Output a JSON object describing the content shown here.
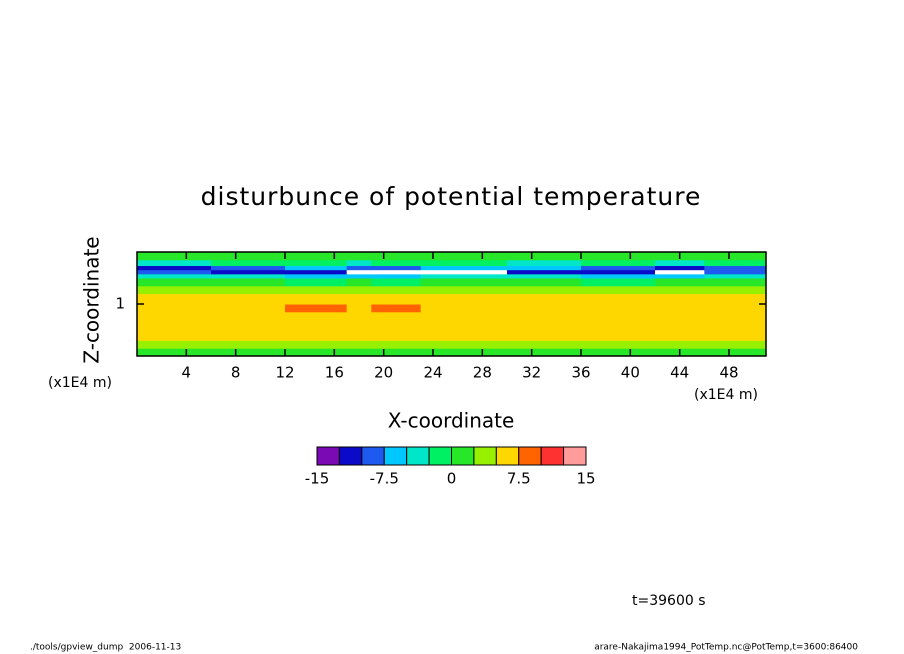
{
  "chart_data": {
    "type": "contour",
    "title": "disturbunce of potential temperature",
    "xlabel": "X-coordinate",
    "ylabel": "Z-coordinate",
    "xunit": "(x1E4 m)",
    "yunit": "(x1E4 m)",
    "xlim": [
      0,
      51
    ],
    "ylim": [
      0,
      2
    ],
    "xticks": [
      4,
      8,
      12,
      16,
      20,
      24,
      28,
      32,
      36,
      40,
      44,
      48
    ],
    "yticks": [
      1
    ],
    "field": {
      "x_edges": [
        0,
        6,
        12,
        17,
        19,
        23,
        30,
        36,
        42,
        46,
        51
      ],
      "z_edges": [
        0,
        0.15,
        0.3,
        0.85,
        1.0,
        1.2,
        1.35,
        1.5,
        1.58,
        1.66,
        1.74,
        1.85,
        2.0
      ],
      "values": [
        [
          1.25,
          1.25,
          1.25,
          1.25,
          1.25,
          1.25,
          1.25,
          1.25,
          1.25,
          1.25
        ],
        [
          3.75,
          3.75,
          3.75,
          3.75,
          3.75,
          3.75,
          3.75,
          3.75,
          3.75,
          3.75
        ],
        [
          6.25,
          6.25,
          6.25,
          6.25,
          6.25,
          6.25,
          6.25,
          6.25,
          6.25,
          6.25
        ],
        [
          6.25,
          6.25,
          8.75,
          6.25,
          8.75,
          6.25,
          6.25,
          6.25,
          6.25,
          6.25
        ],
        [
          6.25,
          6.25,
          6.25,
          6.25,
          6.25,
          6.25,
          6.25,
          6.25,
          6.25,
          6.25
        ],
        [
          3.75,
          3.75,
          3.75,
          3.75,
          3.75,
          3.75,
          3.75,
          3.75,
          3.75,
          3.75
        ],
        [
          1.25,
          1.25,
          -1.25,
          1.25,
          -1.25,
          1.25,
          1.25,
          -1.25,
          1.25,
          1.25
        ],
        [
          -3.75,
          -3.75,
          -6.25,
          -6.25,
          -6.25,
          -3.75,
          -3.75,
          -6.25,
          -6.25,
          -3.75
        ],
        [
          -8.75,
          -11.25,
          -11.25,
          -16,
          -16,
          -16,
          -11.25,
          -11.25,
          -16,
          -8.75
        ],
        [
          -11.25,
          -8.75,
          -6.25,
          -8.75,
          -8.75,
          -6.25,
          -6.25,
          -8.75,
          -11.25,
          -8.75
        ],
        [
          -3.75,
          -1.25,
          -1.25,
          -3.75,
          -1.25,
          -1.25,
          -3.75,
          -1.25,
          -3.75,
          -1.25
        ],
        [
          1.25,
          1.25,
          1.25,
          1.25,
          1.25,
          1.25,
          1.25,
          1.25,
          1.25,
          1.25
        ]
      ]
    },
    "colorbar": {
      "levels": [
        -15,
        -12.5,
        -10,
        -7.5,
        -5,
        -2.5,
        0,
        2.5,
        5,
        7.5,
        10,
        12.5,
        15
      ],
      "colors": [
        "#7a0ab4",
        "#0a0ac8",
        "#1e5af0",
        "#00c8ff",
        "#00e6c8",
        "#00f064",
        "#28e628",
        "#96f000",
        "#ffd700",
        "#ff6400",
        "#ff3232",
        "#ff9b9b"
      ],
      "ticks": [
        -15,
        -7.5,
        0,
        7.5,
        15
      ]
    },
    "annotation": "t=39600 s",
    "footer_left": "./tools/gpview_dump  2006-11-13",
    "footer_right": "arare-Nakajima1994_PotTemp.nc@PotTemp,t=3600:86400"
  }
}
